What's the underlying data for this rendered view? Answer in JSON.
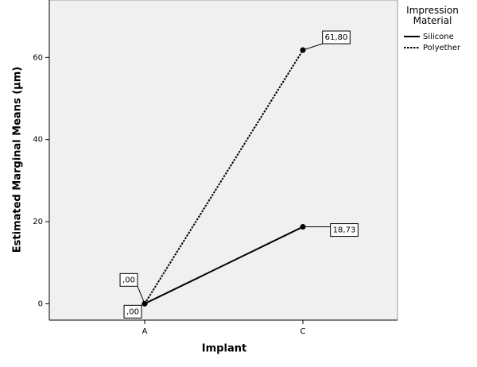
{
  "chart_data": {
    "type": "line",
    "x_label": "Implant",
    "y_label": "Estimated Marginal Means (µm)",
    "legend_title": "Impression Material",
    "categories": [
      "A",
      "C"
    ],
    "series": [
      {
        "name": "Silicone",
        "color": "#000000",
        "line_style": "solid",
        "values": [
          0,
          18.73
        ],
        "value_labels": [
          ",00",
          "18,73"
        ]
      },
      {
        "name": "Polyether",
        "color": "#000000",
        "line_style": "dotted",
        "values": [
          0,
          61.8
        ],
        "value_labels": [
          ",00",
          "61,80"
        ]
      }
    ],
    "ylim": [
      -4,
      74
    ],
    "yticks": [
      0,
      20,
      40,
      60
    ],
    "legend": "right"
  }
}
